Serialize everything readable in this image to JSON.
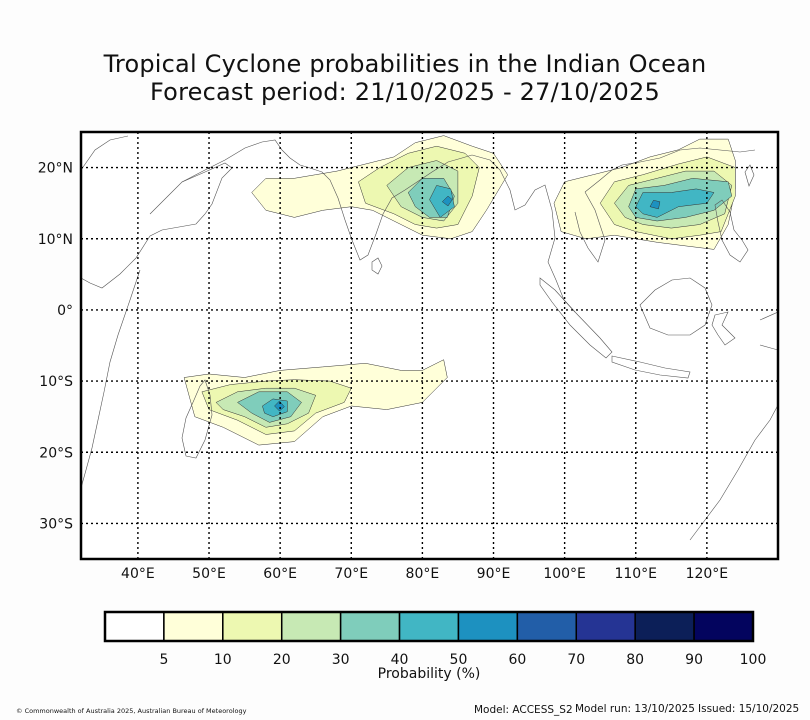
{
  "title_line1": "Tropical Cyclone probabilities in the Indian Ocean",
  "title_line2": "Forecast period: 21/10/2025 - 27/10/2025",
  "map": {
    "lon_range": [
      32,
      130
    ],
    "lat_range": [
      -35,
      25
    ],
    "lon_ticks": [
      {
        "value": 40,
        "label": "40°E"
      },
      {
        "value": 50,
        "label": "50°E"
      },
      {
        "value": 60,
        "label": "60°E"
      },
      {
        "value": 70,
        "label": "70°E"
      },
      {
        "value": 80,
        "label": "80°E"
      },
      {
        "value": 90,
        "label": "90°E"
      },
      {
        "value": 100,
        "label": "100°E"
      },
      {
        "value": 110,
        "label": "110°E"
      },
      {
        "value": 120,
        "label": "120°E"
      }
    ],
    "lat_ticks": [
      {
        "value": 20,
        "label": "20°N"
      },
      {
        "value": 10,
        "label": "10°N"
      },
      {
        "value": 0,
        "label": "0°"
      },
      {
        "value": -10,
        "label": "10°S"
      },
      {
        "value": -20,
        "label": "20°S"
      },
      {
        "value": -30,
        "label": "30°S"
      }
    ],
    "probability_regions": [
      {
        "name": "bay-of-bengal",
        "levels": [
          {
            "level": 5,
            "points": [
              [
                56,
                16.5
              ],
              [
                58,
                18.5
              ],
              [
                62,
                18.5
              ],
              [
                65,
                19
              ],
              [
                68,
                19.5
              ],
              [
                72,
                20.5
              ],
              [
                76,
                21.5
              ],
              [
                79,
                23.5
              ],
              [
                83,
                24.5
              ],
              [
                87,
                23
              ],
              [
                90,
                22
              ],
              [
                92,
                19
              ],
              [
                89,
                14
              ],
              [
                87,
                11
              ],
              [
                84,
                10
              ],
              [
                80,
                10.5
              ],
              [
                76,
                12.5
              ],
              [
                73,
                14
              ],
              [
                70,
                14.5
              ],
              [
                66,
                14
              ],
              [
                62,
                13
              ],
              [
                58,
                14
              ]
            ]
          },
          {
            "level": 10,
            "points": [
              [
                71,
                18
              ],
              [
                74,
                20
              ],
              [
                78,
                22
              ],
              [
                82,
                23
              ],
              [
                86,
                22
              ],
              [
                88,
                20
              ],
              [
                87,
                16
              ],
              [
                85,
                12
              ],
              [
                82,
                11.5
              ],
              [
                79,
                12
              ],
              [
                76,
                13.5
              ],
              [
                72,
                15
              ]
            ]
          },
          {
            "level": 20,
            "points": [
              [
                75,
                17.5
              ],
              [
                78,
                20
              ],
              [
                82,
                21
              ],
              [
                85,
                19.5
              ],
              [
                85,
                15
              ],
              [
                83,
                12.5
              ],
              [
                80,
                13
              ],
              [
                77,
                14.5
              ]
            ]
          },
          {
            "level": 30,
            "points": [
              [
                78,
                16.5
              ],
              [
                80,
                18.5
              ],
              [
                83,
                18.5
              ],
              [
                84.5,
                16
              ],
              [
                83.5,
                13
              ],
              [
                81,
                13
              ],
              [
                79,
                14.5
              ]
            ]
          },
          {
            "level": 40,
            "points": [
              [
                81,
                15.5
              ],
              [
                82,
                17.5
              ],
              [
                84,
                17
              ],
              [
                84.5,
                14.5
              ],
              [
                82.5,
                13
              ]
            ]
          },
          {
            "level": 50,
            "points": [
              [
                82.8,
                15.2
              ],
              [
                83.6,
                16
              ],
              [
                84.2,
                15.5
              ],
              [
                83.6,
                14.6
              ]
            ]
          }
        ]
      },
      {
        "name": "south-china-sea",
        "levels": [
          {
            "level": 5,
            "points": [
              [
                98.5,
                15
              ],
              [
                100,
                18
              ],
              [
                104,
                19
              ],
              [
                108,
                20
              ],
              [
                112,
                21.5
              ],
              [
                116,
                22.5
              ],
              [
                119,
                24
              ],
              [
                123,
                24
              ],
              [
                124,
                21
              ],
              [
                124,
                17
              ],
              [
                123,
                12
              ],
              [
                121,
                8.5
              ],
              [
                117,
                9
              ],
              [
                113,
                9.5
              ],
              [
                110,
                10
              ],
              [
                107,
                10.5
              ],
              [
                103,
                10
              ],
              [
                99.5,
                11
              ]
            ]
          },
          {
            "level": 10,
            "points": [
              [
                105,
                15
              ],
              [
                107,
                18
              ],
              [
                111,
                19
              ],
              [
                116,
                20.5
              ],
              [
                120,
                21.5
              ],
              [
                124,
                20
              ],
              [
                124,
                16
              ],
              [
                122,
                11
              ],
              [
                119,
                10.5
              ],
              [
                115,
                10
              ],
              [
                110,
                11
              ],
              [
                107,
                12
              ]
            ]
          },
          {
            "level": 20,
            "points": [
              [
                107,
                15
              ],
              [
                109,
                17.5
              ],
              [
                113,
                18.5
              ],
              [
                117,
                19.5
              ],
              [
                121,
                19.5
              ],
              [
                123.5,
                17.5
              ],
              [
                122.5,
                13.5
              ],
              [
                119,
                12
              ],
              [
                115,
                11.5
              ],
              [
                111,
                12
              ],
              [
                108.5,
                13
              ]
            ]
          },
          {
            "level": 30,
            "points": [
              [
                109,
                14.5
              ],
              [
                110,
                17
              ],
              [
                114,
                17.5
              ],
              [
                118,
                18.5
              ],
              [
                123,
                18
              ],
              [
                123.5,
                16
              ],
              [
                121,
                14
              ],
              [
                117,
                13
              ],
              [
                113,
                12.5
              ],
              [
                110,
                13
              ]
            ]
          },
          {
            "level": 40,
            "points": [
              [
                110,
                14.5
              ],
              [
                111,
                16.5
              ],
              [
                115,
                16.5
              ],
              [
                118.5,
                17
              ],
              [
                121,
                16.5
              ],
              [
                120,
                15
              ],
              [
                116,
                14.5
              ],
              [
                113,
                13
              ],
              [
                111,
                13.5
              ]
            ]
          },
          {
            "level": 50,
            "points": [
              [
                112,
                14.5
              ],
              [
                112.5,
                15.4
              ],
              [
                113.4,
                15.2
              ],
              [
                113.2,
                14.2
              ]
            ]
          }
        ]
      },
      {
        "name": "south-indian-ocean",
        "levels": [
          {
            "level": 5,
            "points": [
              [
                46.5,
                -9.5
              ],
              [
                50,
                -9
              ],
              [
                55,
                -9.5
              ],
              [
                60,
                -8.5
              ],
              [
                66,
                -8
              ],
              [
                72,
                -7.5
              ],
              [
                77,
                -8.5
              ],
              [
                80,
                -8.5
              ],
              [
                83,
                -7
              ],
              [
                83.5,
                -9.5
              ],
              [
                80,
                -13
              ],
              [
                75,
                -14
              ],
              [
                70,
                -13.5
              ],
              [
                66,
                -15
              ],
              [
                62,
                -18.5
              ],
              [
                57,
                -19
              ],
              [
                52,
                -16.5
              ],
              [
                48,
                -15
              ]
            ]
          },
          {
            "level": 10,
            "points": [
              [
                49,
                -11.5
              ],
              [
                53,
                -10.5
              ],
              [
                58,
                -10
              ],
              [
                62,
                -9.8
              ],
              [
                67,
                -10
              ],
              [
                70,
                -11
              ],
              [
                69,
                -13
              ],
              [
                65,
                -14.5
              ],
              [
                62,
                -17
              ],
              [
                58,
                -17.5
              ],
              [
                54,
                -15.5
              ],
              [
                50,
                -14
              ]
            ]
          },
          {
            "level": 20,
            "points": [
              [
                51,
                -13
              ],
              [
                54,
                -11.5
              ],
              [
                58,
                -11
              ],
              [
                62,
                -11
              ],
              [
                65,
                -12
              ],
              [
                64,
                -14.5
              ],
              [
                61,
                -16
              ],
              [
                58,
                -16.5
              ],
              [
                55,
                -15
              ],
              [
                52,
                -14
              ]
            ]
          },
          {
            "level": 30,
            "points": [
              [
                54,
                -13
              ],
              [
                57,
                -11.5
              ],
              [
                61,
                -11.5
              ],
              [
                63,
                -13
              ],
              [
                61.5,
                -15
              ],
              [
                58.5,
                -15.8
              ],
              [
                56,
                -14.5
              ]
            ]
          },
          {
            "level": 40,
            "points": [
              [
                57.5,
                -13.5
              ],
              [
                59,
                -12.5
              ],
              [
                61,
                -12.8
              ],
              [
                61,
                -14.3
              ],
              [
                59,
                -15
              ],
              [
                57.8,
                -14.5
              ]
            ]
          },
          {
            "level": 50,
            "points": [
              [
                59.2,
                -13.5
              ],
              [
                59.9,
                -12.8
              ],
              [
                60.6,
                -13.6
              ],
              [
                59.9,
                -14.2
              ]
            ]
          }
        ]
      }
    ]
  },
  "colorbar": {
    "label": "Probability (%)",
    "ticks": [
      "5",
      "10",
      "20",
      "30",
      "40",
      "50",
      "60",
      "70",
      "80",
      "90",
      "100"
    ],
    "colors": [
      "#ffffff",
      "#ffffd9",
      "#edf8b1",
      "#c7e9b4",
      "#7fcdbb",
      "#41b6c4",
      "#1d91c0",
      "#225ea8",
      "#253494",
      "#0c1f58",
      "#03045e"
    ]
  },
  "footer": {
    "copyright": "© Commonwealth of Australia 2025, Australian Bureau of Meteorology",
    "model": "Model: ACCESS_S2",
    "model_run": "Model run: 13/10/2025",
    "issued": "Issued: 15/10/2025"
  }
}
